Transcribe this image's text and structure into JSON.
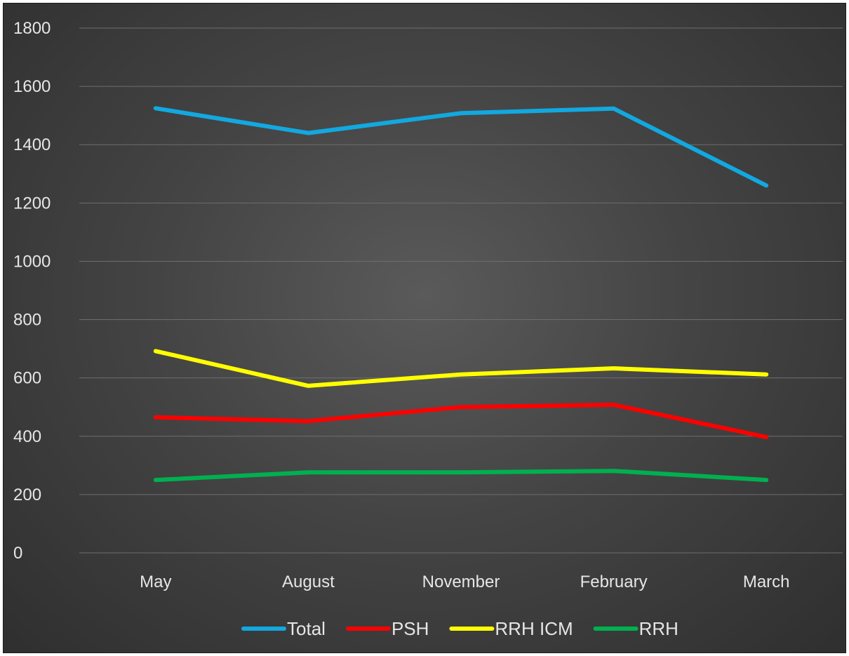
{
  "chart_data": {
    "type": "line",
    "title": "",
    "xlabel": "",
    "ylabel": "",
    "categories": [
      "May",
      "August",
      "November",
      "February",
      "March"
    ],
    "ylim": [
      0,
      1800
    ],
    "yticks": [
      "0",
      "200",
      "400",
      "600",
      "800",
      "1000",
      "1200",
      "1400",
      "1600",
      "1800"
    ],
    "grid": true,
    "legend_position": "bottom",
    "series": [
      {
        "name": "Total",
        "color": "#12a8e0",
        "values": [
          1525,
          1440,
          1508,
          1524,
          1260
        ]
      },
      {
        "name": "PSH",
        "color": "#ff0000",
        "values": [
          465,
          452,
          500,
          508,
          397
        ]
      },
      {
        "name": "RRH ICM",
        "color": "#ffff00",
        "values": [
          692,
          573,
          612,
          633,
          612
        ]
      },
      {
        "name": "RRH",
        "color": "#00b050",
        "values": [
          250,
          276,
          276,
          281,
          250
        ]
      }
    ]
  }
}
